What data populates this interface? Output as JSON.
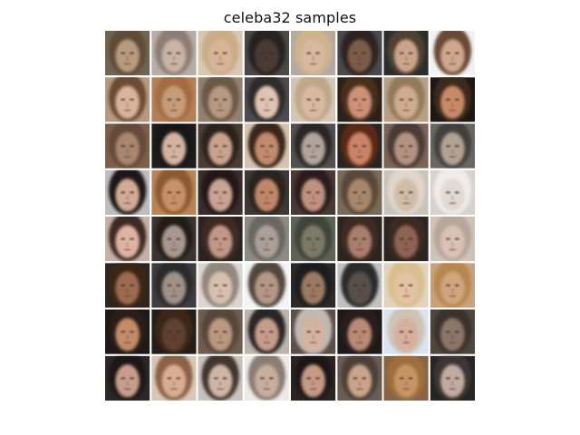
{
  "figure": {
    "title": "celeba32 samples"
  },
  "grid": {
    "rows": 8,
    "cols": 8,
    "separator_color": "#ffffff",
    "tiles": [
      {
        "bg": "#6f6453",
        "hair": "#5f4c38",
        "skin": "#b89a7e"
      },
      {
        "bg": "#b7aca6",
        "hair": "#8c7e75",
        "skin": "#c9b3a4"
      },
      {
        "bg": "#d7c7b4",
        "hair": "#c9ad86",
        "skin": "#d8b49a"
      },
      {
        "bg": "#4a4945",
        "hair": "#252221",
        "skin": "#4a3a31"
      },
      {
        "bg": "#b6aa9f",
        "hair": "#cdb38e",
        "skin": "#d9b8a0"
      },
      {
        "bg": "#4a4a4c",
        "hair": "#2d2422",
        "skin": "#7c5b4a"
      },
      {
        "bg": "#2b2d2c",
        "hair": "#4f3f32",
        "skin": "#cba48b"
      },
      {
        "bg": "#f2f2f2",
        "hair": "#6a4a35",
        "skin": "#cfa88d"
      },
      {
        "bg": "#b49a85",
        "hair": "#6d4b33",
        "skin": "#d7b49a"
      },
      {
        "bg": "#b47f59",
        "hair": "#a46c43",
        "skin": "#c89c79"
      },
      {
        "bg": "#918270",
        "hair": "#6c5846",
        "skin": "#b79880"
      },
      {
        "bg": "#4d4b4d",
        "hair": "#2f2a2a",
        "skin": "#e1c3b3"
      },
      {
        "bg": "#d5c7b5",
        "hair": "#c0a78a",
        "skin": "#d9b9a0"
      },
      {
        "bg": "#2c2019",
        "hair": "#4a2e1e",
        "skin": "#cc9176"
      },
      {
        "bg": "#b8a087",
        "hair": "#937a5d",
        "skin": "#cfac8e"
      },
      {
        "bg": "#1f1812",
        "hair": "#3d2a1e",
        "skin": "#c78a67"
      },
      {
        "bg": "#7b604c",
        "hair": "#65493a",
        "skin": "#a9866e"
      },
      {
        "bg": "#1f1c1d",
        "hair": "#171414",
        "skin": "#d5b3a0"
      },
      {
        "bg": "#4b3d34",
        "hair": "#2c211b",
        "skin": "#caa28c"
      },
      {
        "bg": "#d5c3ae",
        "hair": "#3a271d",
        "skin": "#c28b6d"
      },
      {
        "bg": "#52504f",
        "hair": "#2b2827",
        "skin": "#b2a39c"
      },
      {
        "bg": "#292421",
        "hair": "#5a2c19",
        "skin": "#c98367"
      },
      {
        "bg": "#7a6458",
        "hair": "#4a3b34",
        "skin": "#b49283"
      },
      {
        "bg": "#6a6762",
        "hair": "#42403c",
        "skin": "#b2a294"
      },
      {
        "bg": "#bebcbc",
        "hair": "#1d1716",
        "skin": "#d3aa95"
      },
      {
        "bg": "#b68559",
        "hair": "#8b5a32",
        "skin": "#c79168"
      },
      {
        "bg": "#3a2e2a",
        "hair": "#201816",
        "skin": "#c9a394"
      },
      {
        "bg": "#3f3836",
        "hair": "#2b201c",
        "skin": "#c2876b"
      },
      {
        "bg": "#4a3a34",
        "hair": "#2a1e1b",
        "skin": "#c09180"
      },
      {
        "bg": "#7a6a5a",
        "hair": "#5a4a3b",
        "skin": "#a7876c"
      },
      {
        "bg": "#c9c3bc",
        "hair": "#e1d6c8",
        "skin": "#d0bda9"
      },
      {
        "bg": "#d7d2ce",
        "hair": "#f0ece9",
        "skin": "#e1d9d3"
      },
      {
        "bg": "#c4b2a8",
        "hair": "#3e2a22",
        "skin": "#dfb3a1"
      },
      {
        "bg": "#3b3430",
        "hair": "#221c19",
        "skin": "#a8978f"
      },
      {
        "bg": "#2b2322",
        "hair": "#3d2b24",
        "skin": "#c2978a"
      },
      {
        "bg": "#8d8b85",
        "hair": "#6a6660",
        "skin": "#aba097"
      },
      {
        "bg": "#5f6353",
        "hair": "#41453a",
        "skin": "#7a7a66"
      },
      {
        "bg": "#2a2521",
        "hair": "#3c2a22",
        "skin": "#aa7d6c"
      },
      {
        "bg": "#2d2520",
        "hair": "#3b2a20",
        "skin": "#8d6452"
      },
      {
        "bg": "#cfc2b8",
        "hair": "#b7a699",
        "skin": "#d9c2b5"
      },
      {
        "bg": "#2d261f",
        "hair": "#3a2519",
        "skin": "#9d6b4f"
      },
      {
        "bg": "#3e3e40",
        "hair": "#2a2a2b",
        "skin": "#9f9187"
      },
      {
        "bg": "#dcd6d2",
        "hair": "#91877c",
        "skin": "#d7c0af"
      },
      {
        "bg": "#f3f3f3",
        "hair": "#514840",
        "skin": "#b59786"
      },
      {
        "bg": "#2b2a29",
        "hair": "#1c1b1a",
        "skin": "#9a7a63"
      },
      {
        "bg": "#c3c2c2",
        "hair": "#2a2a2a",
        "skin": "#59504b"
      },
      {
        "bg": "#e1d4bf",
        "hair": "#d8bf8f",
        "skin": "#e3c3a2"
      },
      {
        "bg": "#c7a27a",
        "hair": "#b88750",
        "skin": "#d1a57f"
      },
      {
        "bg": "#1d1a19",
        "hair": "#2c1f19",
        "skin": "#c48b67"
      },
      {
        "bg": "#241d1a",
        "hair": "#3a2516",
        "skin": "#5e4131"
      },
      {
        "bg": "#6f5d4e",
        "hair": "#57463a",
        "skin": "#bb987f"
      },
      {
        "bg": "#bcb4ad",
        "hair": "#2c2725",
        "skin": "#c69c8a"
      },
      {
        "bg": "#5a5049",
        "hair": "#c1b8b0",
        "skin": "#d5b3a1"
      },
      {
        "bg": "#1e1a1a",
        "hair": "#2a1e1b",
        "skin": "#b98b76"
      },
      {
        "bg": "#d8e4f0",
        "hair": "#cfc2b7",
        "skin": "#d6b09d"
      },
      {
        "bg": "#4e473f",
        "hair": "#3a332d",
        "skin": "#8b7667"
      },
      {
        "bg": "#2c2827",
        "hair": "#1c1817",
        "skin": "#c79d8b"
      },
      {
        "bg": "#d8c7b7",
        "hair": "#8a6246",
        "skin": "#d9ad91"
      },
      {
        "bg": "#c8c3bf",
        "hair": "#43352f",
        "skin": "#cfb5a6"
      },
      {
        "bg": "#ede9e6",
        "hair": "#8a7d74",
        "skin": "#c8ae9d"
      },
      {
        "bg": "#2b2522",
        "hair": "#1f1917",
        "skin": "#c49a85"
      },
      {
        "bg": "#6a5d53",
        "hair": "#4b3f37",
        "skin": "#caa38b"
      },
      {
        "bg": "#8a6545",
        "hair": "#a06e3e",
        "skin": "#c79565"
      },
      {
        "bg": "#262424",
        "hair": "#3e3635",
        "skin": "#c3aaa1"
      }
    ]
  }
}
